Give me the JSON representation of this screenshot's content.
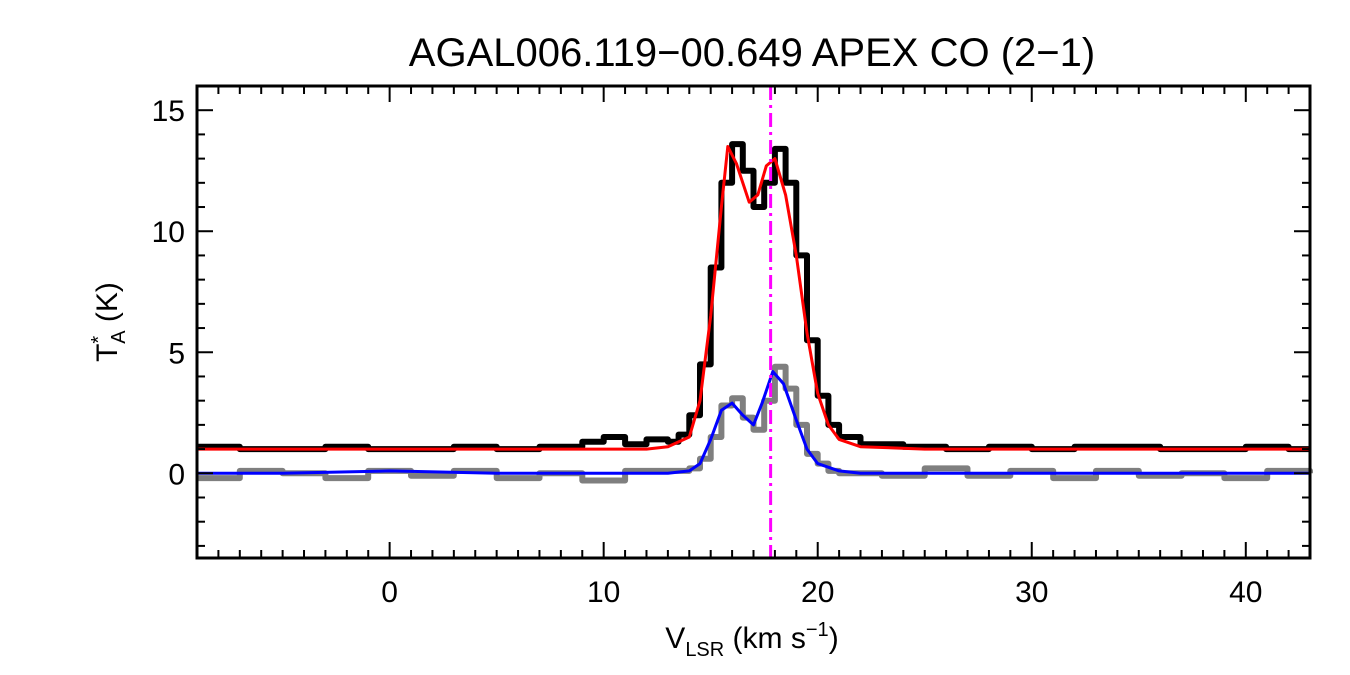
{
  "chart_data": {
    "type": "line",
    "title": "AGAL006.119−00.649  APEX CO (2−1)",
    "xlabel": {
      "main": "V",
      "sub": "LSR",
      "rest": " (km s",
      "sup": "−1",
      "close": ")"
    },
    "ylabel": {
      "main": "T",
      "sup": "*",
      "sub": "A",
      "rest": " (K)"
    },
    "xlim": [
      -9,
      43
    ],
    "ylim": [
      -3.5,
      16
    ],
    "xticks": [
      0,
      10,
      20,
      30,
      40
    ],
    "xtick_labels": [
      "0",
      "10",
      "20",
      "30",
      "40"
    ],
    "yticks": [
      0,
      5,
      10,
      15
    ],
    "ytick_labels": [
      "0",
      "5",
      "10",
      "15"
    ],
    "grid": false,
    "vline": {
      "x": 17.8,
      "color": "#ff00ff",
      "style": "dash-dot"
    },
    "series": [
      {
        "kind": "data",
        "color": "#000000",
        "x": [
          -9,
          -7,
          -5,
          -3,
          -1,
          1,
          3,
          5,
          7,
          9,
          10,
          11,
          12,
          13,
          13.5,
          14,
          14.5,
          15,
          15.5,
          16,
          16.5,
          17,
          17.5,
          18,
          18.5,
          19,
          19.5,
          20,
          20.5,
          21,
          22,
          24,
          26,
          28,
          30,
          32,
          34,
          36,
          38,
          40,
          42,
          43
        ],
        "y": [
          1.1,
          1.0,
          1.0,
          1.1,
          1.0,
          1.0,
          1.1,
          1.0,
          1.1,
          1.3,
          1.5,
          1.2,
          1.4,
          1.3,
          1.6,
          2.4,
          4.5,
          8.5,
          12.0,
          13.6,
          12.5,
          11.0,
          12.0,
          13.4,
          12.0,
          9.0,
          5.5,
          3.2,
          2.0,
          1.5,
          1.2,
          1.1,
          1.0,
          1.1,
          1.0,
          1.1,
          1.1,
          1.0,
          1.0,
          1.1,
          1.0,
          1.0
        ]
      },
      {
        "kind": "fit",
        "color": "#ff0000",
        "x": [
          -9,
          -5,
          0,
          5,
          10,
          12,
          13,
          14,
          14.5,
          15,
          15.5,
          15.8,
          16.2,
          16.8,
          17.2,
          17.6,
          18,
          18.5,
          19,
          19.5,
          20,
          20.5,
          21,
          22,
          25,
          30,
          35,
          40,
          43
        ],
        "y": [
          1.0,
          1.0,
          1.0,
          1.0,
          1.0,
          1.0,
          1.1,
          1.5,
          3.0,
          6.5,
          11.0,
          13.5,
          12.8,
          11.2,
          11.5,
          12.7,
          13.0,
          11.5,
          9.0,
          5.8,
          3.3,
          2.0,
          1.4,
          1.1,
          1.0,
          1.0,
          1.0,
          1.0,
          1.0
        ]
      },
      {
        "kind": "data",
        "color": "#7f7f7f",
        "x": [
          -9,
          -7,
          -5,
          -3,
          -1,
          1,
          3,
          5,
          7,
          9,
          11,
          13,
          14,
          14.5,
          15,
          15.5,
          16,
          16.5,
          17,
          17.5,
          18,
          18.5,
          19,
          19.5,
          20,
          20.5,
          21,
          23,
          25,
          27,
          29,
          31,
          33,
          35,
          37,
          39,
          41,
          43
        ],
        "y": [
          -0.2,
          0.1,
          0.0,
          -0.2,
          0.1,
          -0.1,
          0.1,
          -0.2,
          0.0,
          -0.3,
          0.1,
          0.1,
          0.2,
          0.6,
          1.5,
          2.8,
          3.1,
          2.3,
          1.8,
          3.0,
          4.4,
          3.5,
          2.0,
          0.8,
          0.4,
          0.1,
          0.0,
          -0.1,
          0.2,
          -0.1,
          0.1,
          -0.2,
          0.1,
          -0.1,
          0.0,
          -0.2,
          0.1,
          0.0
        ]
      },
      {
        "kind": "fit",
        "color": "#0000ff",
        "x": [
          -9,
          -5,
          0,
          5,
          10,
          13,
          14,
          14.5,
          15,
          15.5,
          16,
          16.5,
          17,
          17.4,
          17.9,
          18.4,
          19,
          19.5,
          20,
          21,
          22,
          25,
          30,
          35,
          40,
          43
        ],
        "y": [
          0.0,
          0.0,
          0.1,
          0.0,
          0.0,
          0.0,
          0.1,
          0.4,
          1.4,
          2.6,
          2.9,
          2.4,
          2.0,
          2.9,
          4.2,
          3.7,
          2.2,
          1.0,
          0.4,
          0.1,
          0.0,
          0.0,
          0.0,
          0.0,
          0.0,
          0.0
        ]
      }
    ]
  }
}
